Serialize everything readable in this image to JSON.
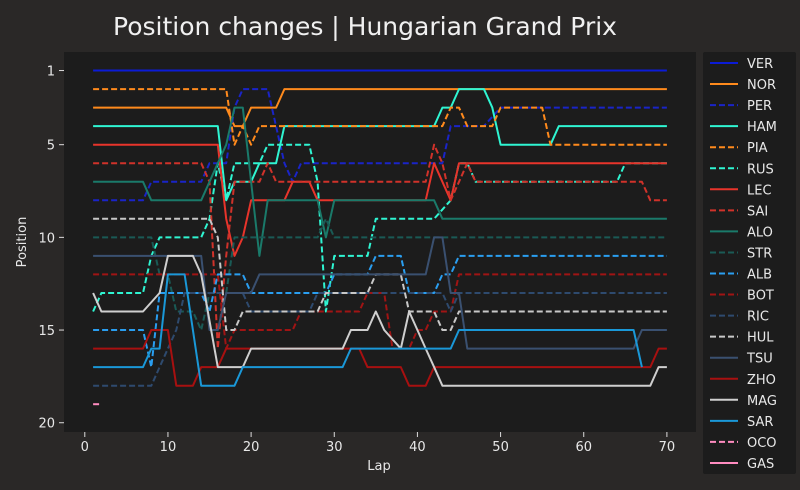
{
  "chart_data": {
    "type": "line",
    "title": "Position changes | Hungarian Grand Prix",
    "xlabel": "Lap",
    "ylabel": "Position",
    "xlim": [
      -2.5,
      73.5
    ],
    "ylim": [
      20.5,
      0
    ],
    "y_inverted": true,
    "xticks": [
      0,
      10,
      20,
      30,
      40,
      50,
      60,
      70
    ],
    "yticks": [
      1,
      5,
      10,
      15,
      20
    ],
    "grid": false,
    "legend_position": "outside-right",
    "series": [
      {
        "name": "VER",
        "color": "#0b1bd6",
        "dash": "solid",
        "points": [
          [
            1,
            1
          ],
          [
            70,
            1
          ]
        ]
      },
      {
        "name": "NOR",
        "color": "#ff8a1c",
        "dash": "solid",
        "points": [
          [
            1,
            3
          ],
          [
            17,
            3
          ],
          [
            18,
            4
          ],
          [
            19,
            4
          ],
          [
            20,
            3
          ],
          [
            23,
            3
          ],
          [
            24,
            2
          ],
          [
            70,
            2
          ]
        ]
      },
      {
        "name": "PER",
        "color": "#1a24c8",
        "dash": "dashed",
        "points": [
          [
            1,
            8
          ],
          [
            7,
            8
          ],
          [
            8,
            7
          ],
          [
            14,
            7
          ],
          [
            15,
            6
          ],
          [
            17,
            6
          ],
          [
            18,
            3
          ],
          [
            19,
            2
          ],
          [
            22,
            2
          ],
          [
            24,
            6
          ],
          [
            25,
            7
          ],
          [
            26,
            6
          ],
          [
            43,
            6
          ],
          [
            44,
            4
          ],
          [
            48,
            4
          ],
          [
            50,
            3
          ],
          [
            70,
            3
          ]
        ]
      },
      {
        "name": "HAM",
        "color": "#2ff5d2",
        "dash": "solid",
        "points": [
          [
            1,
            4
          ],
          [
            16,
            4
          ],
          [
            17,
            8
          ],
          [
            18,
            7
          ],
          [
            20,
            7
          ],
          [
            21,
            6
          ],
          [
            23,
            6
          ],
          [
            24,
            4
          ],
          [
            42,
            4
          ],
          [
            43,
            3
          ],
          [
            44,
            3
          ],
          [
            45,
            2
          ],
          [
            48,
            2
          ],
          [
            49,
            3
          ],
          [
            50,
            5
          ],
          [
            56,
            5
          ],
          [
            57,
            4
          ],
          [
            70,
            4
          ]
        ]
      },
      {
        "name": "PIA",
        "color": "#ff8a1c",
        "dash": "dashed",
        "points": [
          [
            1,
            2
          ],
          [
            17,
            2
          ],
          [
            18,
            5
          ],
          [
            19,
            4
          ],
          [
            20,
            5
          ],
          [
            21,
            4
          ],
          [
            43,
            4
          ],
          [
            44,
            3
          ],
          [
            45,
            3
          ],
          [
            46,
            4
          ],
          [
            49,
            4
          ],
          [
            50,
            3
          ],
          [
            55,
            3
          ],
          [
            56,
            5
          ],
          [
            70,
            5
          ]
        ]
      },
      {
        "name": "RUS",
        "color": "#2ff5d2",
        "dash": "dashed",
        "points": [
          [
            1,
            14
          ],
          [
            2,
            13
          ],
          [
            7,
            13
          ],
          [
            8,
            11
          ],
          [
            9,
            10
          ],
          [
            14,
            10
          ],
          [
            15,
            9
          ],
          [
            16,
            6
          ],
          [
            17,
            8
          ],
          [
            18,
            6
          ],
          [
            21,
            6
          ],
          [
            22,
            5
          ],
          [
            27,
            5
          ],
          [
            28,
            7
          ],
          [
            29,
            14
          ],
          [
            30,
            11
          ],
          [
            34,
            11
          ],
          [
            35,
            9
          ],
          [
            42,
            9
          ],
          [
            44,
            8
          ],
          [
            45,
            6
          ],
          [
            46,
            6
          ],
          [
            47,
            7
          ],
          [
            64,
            7
          ],
          [
            65,
            6
          ],
          [
            70,
            6
          ]
        ]
      },
      {
        "name": "LEC",
        "color": "#e8342b",
        "dash": "solid",
        "points": [
          [
            1,
            5
          ],
          [
            16,
            5
          ],
          [
            17,
            9
          ],
          [
            18,
            11
          ],
          [
            19,
            10
          ],
          [
            20,
            8
          ],
          [
            24,
            8
          ],
          [
            25,
            7
          ],
          [
            27,
            7
          ],
          [
            28,
            8
          ],
          [
            41,
            8
          ],
          [
            42,
            6
          ],
          [
            43,
            7
          ],
          [
            44,
            8
          ],
          [
            45,
            6
          ],
          [
            70,
            6
          ]
        ]
      },
      {
        "name": "SAI",
        "color": "#d0322a",
        "dash": "dashed",
        "points": [
          [
            1,
            6
          ],
          [
            14,
            6
          ],
          [
            15,
            7
          ],
          [
            16,
            16
          ],
          [
            17,
            11
          ],
          [
            18,
            7
          ],
          [
            21,
            7
          ],
          [
            22,
            6
          ],
          [
            23,
            7
          ],
          [
            28,
            7
          ],
          [
            41,
            7
          ],
          [
            42,
            5
          ],
          [
            43,
            6
          ],
          [
            44,
            8
          ],
          [
            45,
            7
          ],
          [
            46,
            6
          ],
          [
            47,
            7
          ],
          [
            67,
            7
          ],
          [
            68,
            8
          ],
          [
            70,
            8
          ]
        ]
      },
      {
        "name": "ALO",
        "color": "#1a7a6a",
        "dash": "solid",
        "points": [
          [
            1,
            7
          ],
          [
            7,
            7
          ],
          [
            8,
            8
          ],
          [
            14,
            8
          ],
          [
            15,
            7
          ],
          [
            16,
            6
          ],
          [
            17,
            5
          ],
          [
            18,
            3
          ],
          [
            19,
            3
          ],
          [
            20,
            7
          ],
          [
            21,
            11
          ],
          [
            22,
            8
          ],
          [
            28,
            8
          ],
          [
            29,
            10
          ],
          [
            30,
            8
          ],
          [
            42,
            8
          ],
          [
            43,
            9
          ],
          [
            70,
            9
          ]
        ]
      },
      {
        "name": "STR",
        "color": "#1a5a55",
        "dash": "dashed",
        "points": [
          [
            1,
            10
          ],
          [
            8,
            10
          ],
          [
            9,
            12
          ],
          [
            10,
            12
          ],
          [
            11,
            14
          ],
          [
            13,
            14
          ],
          [
            14,
            15
          ],
          [
            15,
            13
          ],
          [
            17,
            13
          ],
          [
            18,
            10
          ],
          [
            28,
            10
          ],
          [
            29,
            9
          ],
          [
            30,
            10
          ],
          [
            70,
            10
          ]
        ]
      },
      {
        "name": "ALB",
        "color": "#2a9ef0",
        "dash": "dashed",
        "points": [
          [
            1,
            15
          ],
          [
            7,
            15
          ],
          [
            8,
            17
          ],
          [
            9,
            13
          ],
          [
            14,
            13
          ],
          [
            15,
            14
          ],
          [
            16,
            12
          ],
          [
            19,
            12
          ],
          [
            20,
            13
          ],
          [
            29,
            13
          ],
          [
            30,
            12
          ],
          [
            34,
            12
          ],
          [
            35,
            11
          ],
          [
            38,
            11
          ],
          [
            39,
            13
          ],
          [
            42,
            13
          ],
          [
            43,
            12
          ],
          [
            44,
            12
          ],
          [
            45,
            11
          ],
          [
            70,
            11
          ]
        ]
      },
      {
        "name": "BOT",
        "color": "#a01414",
        "dash": "dashed",
        "points": [
          [
            1,
            12
          ],
          [
            16,
            12
          ],
          [
            17,
            16
          ],
          [
            18,
            15
          ],
          [
            25,
            15
          ],
          [
            26,
            14
          ],
          [
            33,
            14
          ],
          [
            34,
            13
          ],
          [
            36,
            13
          ],
          [
            37,
            16
          ],
          [
            39,
            16
          ],
          [
            40,
            15
          ],
          [
            41,
            15
          ],
          [
            42,
            14
          ],
          [
            44,
            14
          ],
          [
            45,
            12
          ],
          [
            70,
            12
          ]
        ]
      },
      {
        "name": "RIC",
        "color": "#2e4a6e",
        "dash": "dashed",
        "points": [
          [
            1,
            18
          ],
          [
            8,
            18
          ],
          [
            9,
            17
          ],
          [
            10,
            16
          ],
          [
            11,
            15
          ],
          [
            12,
            13
          ],
          [
            19,
            13
          ],
          [
            20,
            14
          ],
          [
            27,
            14
          ],
          [
            28,
            13
          ],
          [
            43,
            13
          ],
          [
            44,
            14
          ],
          [
            45,
            13
          ],
          [
            70,
            13
          ]
        ]
      },
      {
        "name": "HUL",
        "color": "#c8c8c8",
        "dash": "dashed",
        "points": [
          [
            1,
            9
          ],
          [
            15,
            9
          ],
          [
            16,
            10
          ],
          [
            17,
            15
          ],
          [
            18,
            15
          ],
          [
            19,
            14
          ],
          [
            28,
            14
          ],
          [
            29,
            13
          ],
          [
            34,
            13
          ],
          [
            35,
            12
          ],
          [
            38,
            12
          ],
          [
            39,
            14
          ],
          [
            42,
            14
          ],
          [
            43,
            15
          ],
          [
            44,
            15
          ],
          [
            45,
            14
          ],
          [
            70,
            14
          ]
        ]
      },
      {
        "name": "TSU",
        "color": "#3a5070",
        "dash": "solid",
        "points": [
          [
            1,
            11
          ],
          [
            14,
            11
          ],
          [
            15,
            15
          ],
          [
            16,
            15
          ],
          [
            17,
            13
          ],
          [
            20,
            13
          ],
          [
            21,
            12
          ],
          [
            41,
            12
          ],
          [
            42,
            10
          ],
          [
            43,
            10
          ],
          [
            44,
            13
          ],
          [
            45,
            13
          ],
          [
            46,
            16
          ],
          [
            66,
            16
          ],
          [
            67,
            15
          ],
          [
            70,
            15
          ]
        ]
      },
      {
        "name": "ZHO",
        "color": "#a81010",
        "dash": "solid",
        "points": [
          [
            1,
            16
          ],
          [
            7,
            16
          ],
          [
            8,
            15
          ],
          [
            10,
            15
          ],
          [
            11,
            18
          ],
          [
            13,
            18
          ],
          [
            14,
            17
          ],
          [
            16,
            17
          ],
          [
            17,
            16
          ],
          [
            33,
            16
          ],
          [
            34,
            17
          ],
          [
            38,
            17
          ],
          [
            39,
            18
          ],
          [
            41,
            18
          ],
          [
            42,
            17
          ],
          [
            68,
            17
          ],
          [
            69,
            16
          ],
          [
            70,
            16
          ]
        ]
      },
      {
        "name": "MAG",
        "color": "#cfcfcf",
        "dash": "solid",
        "points": [
          [
            1,
            13
          ],
          [
            2,
            14
          ],
          [
            7,
            14
          ],
          [
            9,
            13
          ],
          [
            10,
            11
          ],
          [
            13,
            11
          ],
          [
            14,
            12
          ],
          [
            16,
            17
          ],
          [
            19,
            17
          ],
          [
            20,
            16
          ],
          [
            31,
            16
          ],
          [
            32,
            15
          ],
          [
            34,
            15
          ],
          [
            35,
            14
          ],
          [
            36,
            15
          ],
          [
            38,
            16
          ],
          [
            39,
            14
          ],
          [
            40,
            15
          ],
          [
            41,
            16
          ],
          [
            42,
            17
          ],
          [
            43,
            18
          ],
          [
            68,
            18
          ],
          [
            69,
            17
          ],
          [
            70,
            17
          ]
        ]
      },
      {
        "name": "SAR",
        "color": "#1a98d8",
        "dash": "solid",
        "points": [
          [
            1,
            17
          ],
          [
            7,
            17
          ],
          [
            8,
            16
          ],
          [
            9,
            16
          ],
          [
            10,
            12
          ],
          [
            12,
            12
          ],
          [
            13,
            15
          ],
          [
            14,
            18
          ],
          [
            18,
            18
          ],
          [
            19,
            17
          ],
          [
            31,
            17
          ],
          [
            32,
            16
          ],
          [
            44,
            16
          ],
          [
            45,
            15
          ],
          [
            66,
            15
          ],
          [
            67,
            17
          ]
        ]
      },
      {
        "name": "OCO",
        "color": "#ff8cc0",
        "dash": "dashed",
        "points": [
          [
            1,
            19
          ],
          [
            2,
            19
          ]
        ]
      },
      {
        "name": "GAS",
        "color": "#ff8cc0",
        "dash": "solid",
        "points": []
      }
    ]
  }
}
